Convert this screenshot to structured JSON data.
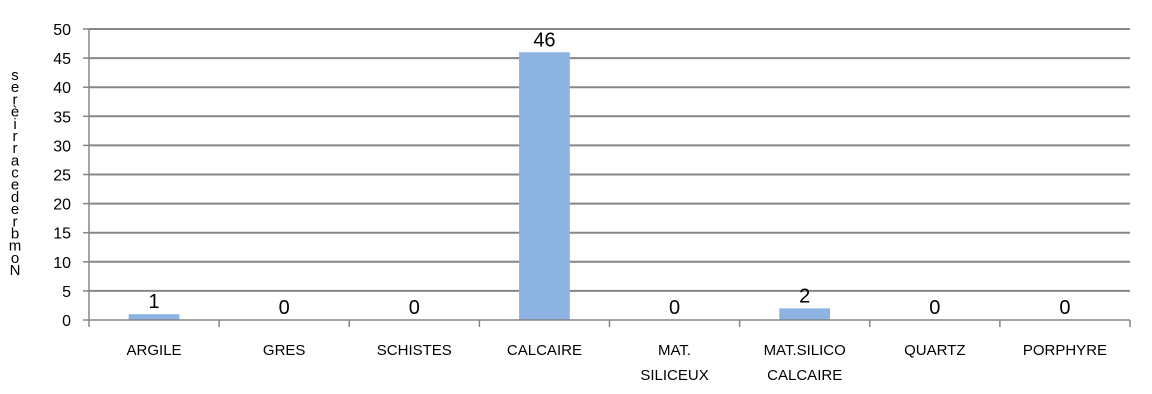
{
  "chart_data": {
    "type": "bar",
    "ylabel": "Nombre de carrières",
    "categories": [
      [
        "ARGILE"
      ],
      [
        "GRES"
      ],
      [
        "SCHISTES"
      ],
      [
        "CALCAIRE"
      ],
      [
        "MAT.",
        "SILICEUX"
      ],
      [
        "MAT.SILICO",
        "CALCAIRE"
      ],
      [
        "QUARTZ"
      ],
      [
        "PORPHYRE"
      ]
    ],
    "values": [
      1,
      0,
      0,
      46,
      0,
      2,
      0,
      0
    ],
    "data_labels": [
      "1",
      "0",
      "0",
      "46",
      "0",
      "2",
      "0",
      "0"
    ],
    "ylim": [
      0,
      50
    ],
    "yticks": [
      0,
      5,
      10,
      15,
      20,
      25,
      30,
      35,
      40,
      45,
      50
    ],
    "grid": true,
    "legend": "none",
    "colors": {
      "bar": "#8DB3E2",
      "grid": "#868686",
      "axis": "#868686"
    }
  }
}
